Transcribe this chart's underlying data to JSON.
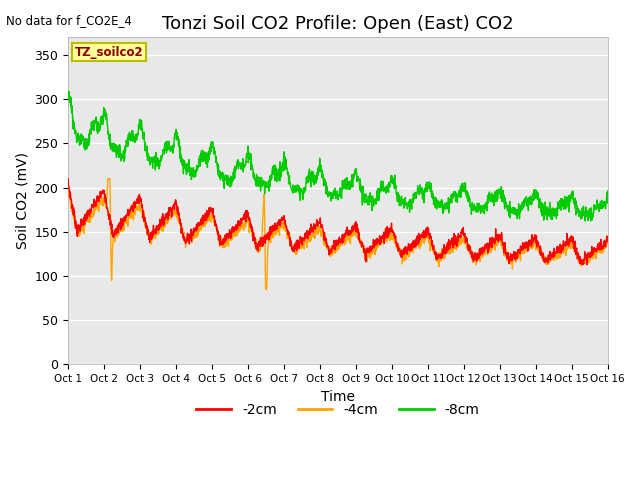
{
  "title": "Tonzi Soil CO2 Profile: Open (East) CO2",
  "subtitle": "No data for f_CO2E_4",
  "ylabel": "Soil CO2 (mV)",
  "xlabel": "Time",
  "legend_label": "TZ_soilco2",
  "xlim": [
    0,
    15
  ],
  "ylim": [
    0,
    370
  ],
  "yticks": [
    0,
    50,
    100,
    150,
    200,
    250,
    300,
    350
  ],
  "xtick_labels": [
    "Oct 1",
    "Oct 2",
    "Oct 3",
    "Oct 4",
    "Oct 5",
    "Oct 6",
    "Oct 7",
    "Oct 8",
    "Oct 9",
    "Oct 10",
    "Oct 11",
    "Oct 12",
    "Oct 13",
    "Oct 14",
    "Oct 15",
    "Oct 16"
  ],
  "color_2cm": "#ff0000",
  "color_4cm": "#ffa500",
  "color_8cm": "#00cc00",
  "background_color": "#e8e8e8",
  "legend_box_facecolor": "#ffff99",
  "legend_box_edgecolor": "#bbbb00",
  "title_fontsize": 13,
  "axis_fontsize": 10,
  "tick_fontsize": 9
}
